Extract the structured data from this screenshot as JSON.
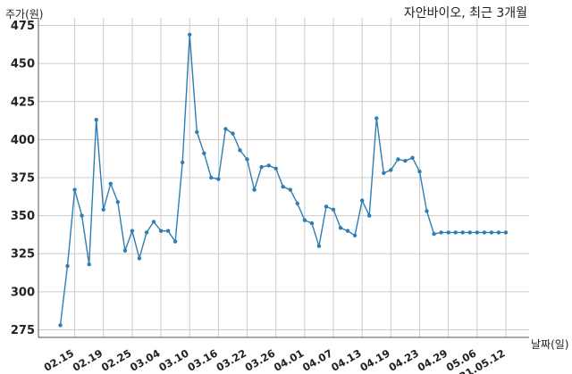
{
  "chart_data": {
    "type": "line",
    "title": "자안바이오, 최근 3개월",
    "xlabel": "날짜(일)",
    "ylabel": "주가(원)",
    "ylim": [
      270,
      480
    ],
    "yticks": [
      275,
      300,
      325,
      350,
      375,
      400,
      425,
      450,
      475
    ],
    "xtick_labels": [
      "02.15",
      "02.19",
      "02.25",
      "03.04",
      "03.10",
      "03.16",
      "03.22",
      "03.26",
      "04.01",
      "04.07",
      "04.13",
      "04.19",
      "04.23",
      "04.29",
      "05.06",
      "21.05.12"
    ],
    "xtick_indices": [
      2,
      6,
      10,
      14,
      18,
      22,
      26,
      30,
      34,
      38,
      42,
      46,
      50,
      54,
      58,
      62
    ],
    "grid": true,
    "legend": "none",
    "line_color": "#2e7db4",
    "series": [
      {
        "values": [
          278,
          317,
          367,
          350,
          318,
          413,
          354,
          371,
          359,
          327,
          340,
          322,
          339,
          346,
          340,
          340,
          333,
          385,
          469,
          405,
          391,
          375,
          374,
          407,
          404,
          393,
          387,
          367,
          382,
          383,
          381,
          369,
          367,
          358,
          347,
          345,
          330,
          356,
          354,
          342,
          340,
          337,
          360,
          350,
          414,
          378,
          380,
          387,
          386,
          388,
          379,
          353,
          338,
          339,
          339,
          339,
          339,
          339,
          339,
          339,
          339,
          339,
          339
        ]
      }
    ]
  }
}
